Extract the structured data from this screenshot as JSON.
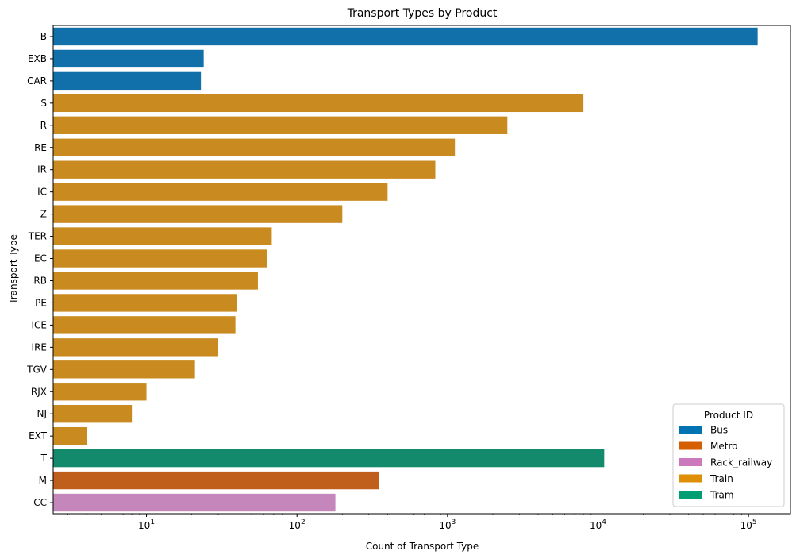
{
  "chart_data": {
    "type": "bar",
    "orientation": "horizontal",
    "title": "Transport Types by Product",
    "xlabel": "Count of Transport Type",
    "ylabel": "Transport Type",
    "x_scale": "log",
    "xlim": [
      2.4,
      190000
    ],
    "x_ticks": [
      {
        "value": 10,
        "base": "10",
        "exp": "1"
      },
      {
        "value": 100,
        "base": "10",
        "exp": "2"
      },
      {
        "value": 1000,
        "base": "10",
        "exp": "3"
      },
      {
        "value": 10000,
        "base": "10",
        "exp": "4"
      },
      {
        "value": 100000,
        "base": "10",
        "exp": "5"
      }
    ],
    "grid": false,
    "legend": {
      "title": "Product ID",
      "placement": "lower-right",
      "entries": [
        {
          "name": "Bus",
          "color": "#0173b2"
        },
        {
          "name": "Metro",
          "color": "#d55e00"
        },
        {
          "name": "Rack_railway",
          "color": "#cc78bc"
        },
        {
          "name": "Train",
          "color": "#de8f05"
        },
        {
          "name": "Tram",
          "color": "#029e73"
        }
      ]
    },
    "bars": [
      {
        "category": "B",
        "value": 115000,
        "product": "Bus",
        "color": "#1170aa"
      },
      {
        "category": "EXB",
        "value": 24,
        "product": "Bus",
        "color": "#1170aa"
      },
      {
        "category": "CAR",
        "value": 23,
        "product": "Bus",
        "color": "#1170aa"
      },
      {
        "category": "S",
        "value": 8000,
        "product": "Train",
        "color": "#c98a1f"
      },
      {
        "category": "R",
        "value": 2500,
        "product": "Train",
        "color": "#c98a1f"
      },
      {
        "category": "RE",
        "value": 1120,
        "product": "Train",
        "color": "#c98a1f"
      },
      {
        "category": "IR",
        "value": 830,
        "product": "Train",
        "color": "#c98a1f"
      },
      {
        "category": "IC",
        "value": 400,
        "product": "Train",
        "color": "#c98a1f"
      },
      {
        "category": "Z",
        "value": 200,
        "product": "Train",
        "color": "#c98a1f"
      },
      {
        "category": "TER",
        "value": 68,
        "product": "Train",
        "color": "#c98a1f"
      },
      {
        "category": "EC",
        "value": 63,
        "product": "Train",
        "color": "#c98a1f"
      },
      {
        "category": "RB",
        "value": 55,
        "product": "Train",
        "color": "#c98a1f"
      },
      {
        "category": "PE",
        "value": 40,
        "product": "Train",
        "color": "#c98a1f"
      },
      {
        "category": "ICE",
        "value": 39,
        "product": "Train",
        "color": "#c98a1f"
      },
      {
        "category": "IRE",
        "value": 30,
        "product": "Train",
        "color": "#c98a1f"
      },
      {
        "category": "TGV",
        "value": 21,
        "product": "Train",
        "color": "#c98a1f"
      },
      {
        "category": "RJX",
        "value": 10,
        "product": "Train",
        "color": "#c98a1f"
      },
      {
        "category": "NJ",
        "value": 8,
        "product": "Train",
        "color": "#c98a1f"
      },
      {
        "category": "EXT",
        "value": 4,
        "product": "Train",
        "color": "#c98a1f"
      },
      {
        "category": "T",
        "value": 11000,
        "product": "Tram",
        "color": "#138a6b"
      },
      {
        "category": "M",
        "value": 350,
        "product": "Metro",
        "color": "#c05f1c"
      },
      {
        "category": "CC",
        "value": 180,
        "product": "Rack_railway",
        "color": "#c586bb"
      }
    ]
  }
}
